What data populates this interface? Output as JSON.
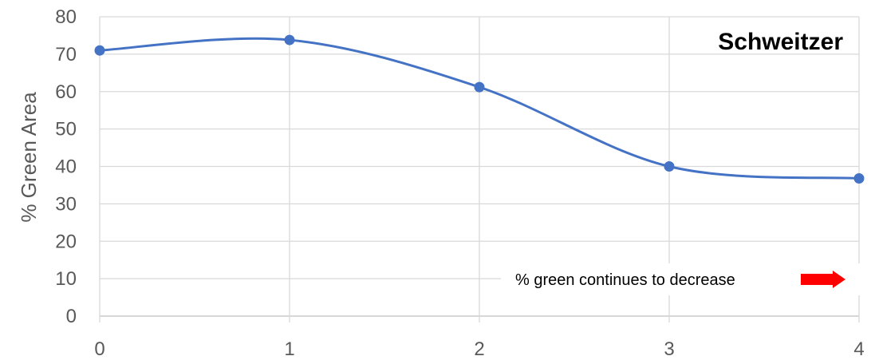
{
  "chart_data": {
    "type": "line",
    "title": "Schweitzer",
    "xlabel": "",
    "ylabel": "% Green Area",
    "x": [
      0,
      1,
      2,
      3,
      4
    ],
    "xticks": [
      "0",
      "1",
      "2",
      "3",
      "4"
    ],
    "yticks": [
      "0",
      "10",
      "20",
      "30",
      "40",
      "50",
      "60",
      "70",
      "80"
    ],
    "xlim": [
      0,
      4
    ],
    "ylim": [
      0,
      80
    ],
    "grid": true,
    "smooth": true,
    "series": [
      {
        "values": [
          71,
          73.8,
          61.2,
          40,
          36.8
        ],
        "color": "#4472C4"
      }
    ],
    "annotation": {
      "text": "% green continues to decrease",
      "arrow_color": "#FF0000"
    }
  }
}
